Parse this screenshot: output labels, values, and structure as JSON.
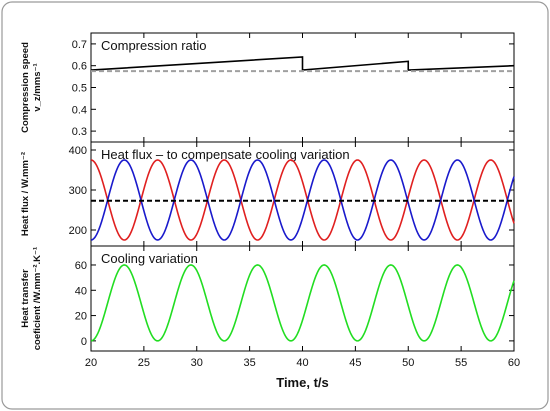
{
  "chart_data": [
    {
      "type": "line",
      "title": "Compression ratio",
      "ylabel_lines": [
        "Compression speed",
        "v_z/mms⁻¹"
      ],
      "xlim": [
        20,
        60
      ],
      "ylim": [
        0.25,
        0.75
      ],
      "yticks": [
        0.3,
        0.4,
        0.5,
        0.6,
        0.7
      ],
      "ytick_labels": [
        "0.3",
        "0.4",
        "0.5",
        "0.6",
        "0.7"
      ],
      "grid": false,
      "series": [
        {
          "style": "solid",
          "color": "#000000",
          "x": [
            20,
            40,
            40,
            50,
            50,
            60
          ],
          "y": [
            0.58,
            0.64,
            0.58,
            0.62,
            0.58,
            0.6
          ]
        },
        {
          "style": "dashed",
          "color": "#a0a0a0",
          "x": [
            20,
            60
          ],
          "y": [
            0.575,
            0.575
          ]
        }
      ]
    },
    {
      "type": "line",
      "title": "Heat flux – to compensate cooling variation",
      "ylabel_lines": [
        "Heat flux / W.mm⁻²"
      ],
      "xlim": [
        20,
        60
      ],
      "ylim": [
        160,
        420
      ],
      "yticks": [
        200,
        300,
        400
      ],
      "ytick_labels": [
        "200",
        "300",
        "400"
      ],
      "grid": false,
      "series": [
        {
          "style": "solid",
          "color": "#e02020",
          "function": "sine",
          "mean": 275,
          "amplitude": 100,
          "period": 6.3,
          "phase_deg": 90,
          "x_range": [
            20,
            60
          ]
        },
        {
          "style": "solid",
          "color": "#1a1acc",
          "function": "sine",
          "mean": 275,
          "amplitude": 100,
          "period": 6.3,
          "phase_deg": -90,
          "x_range": [
            20,
            60
          ]
        },
        {
          "style": "dashed",
          "color": "#000000",
          "x": [
            20,
            60
          ],
          "y": [
            273,
            273
          ]
        }
      ]
    },
    {
      "type": "line",
      "title": "Cooling variation",
      "ylabel_lines": [
        "Heat transfer",
        "coeficient /W.mm⁻².K⁻¹"
      ],
      "xlim": [
        20,
        60
      ],
      "ylim": [
        -8,
        75
      ],
      "yticks": [
        0,
        20,
        40,
        60
      ],
      "ytick_labels": [
        "0",
        "20",
        "40",
        "60"
      ],
      "grid": false,
      "series": [
        {
          "style": "solid",
          "color": "#22dd22",
          "function": "sine",
          "mean": 30,
          "amplitude": 30,
          "period": 6.3,
          "phase_deg": -90,
          "x_range": [
            20,
            60
          ]
        }
      ]
    }
  ],
  "shared_x": {
    "label": "Time, t/s",
    "ticks": [
      20,
      25,
      30,
      35,
      40,
      45,
      50,
      55,
      60
    ],
    "tick_labels": [
      "20",
      "25",
      "30",
      "35",
      "40",
      "45",
      "50",
      "55",
      "60"
    ]
  }
}
